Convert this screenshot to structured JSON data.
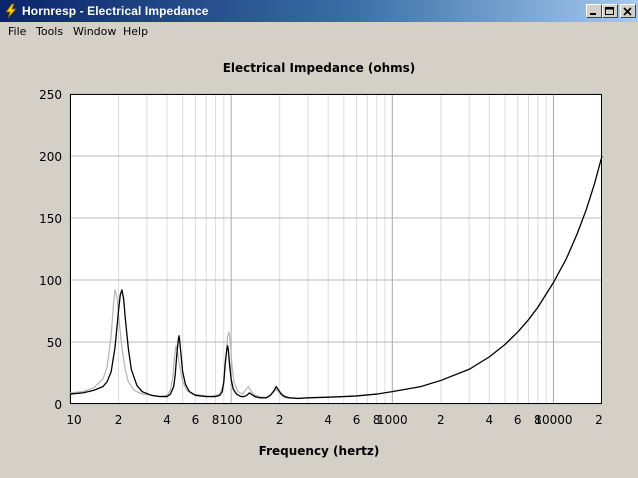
{
  "window": {
    "title": "Hornresp - Electrical Impedance",
    "icon": "hornresp-app-icon",
    "controls": [
      "minimize-icon",
      "maximize-icon",
      "close-icon"
    ]
  },
  "menu": {
    "items": [
      "File",
      "Tools",
      "Window",
      "Help"
    ]
  },
  "colors": {
    "titlebar_start": "#0a246a",
    "titlebar_end": "#a6caf0",
    "window_bg": "#d4d0c8",
    "plot_bg": "#ffffff",
    "grid": "#c0c0c0",
    "primary_curve": "#000000",
    "reference_curve": "#b4b4b4"
  },
  "chart_data": {
    "type": "line",
    "title": "Electrical Impedance (ohms)",
    "xlabel": "Frequency (hertz)",
    "ylabel": "",
    "x_scale": "log",
    "xlim": [
      10,
      20000
    ],
    "ylim": [
      0,
      250
    ],
    "y_ticks": [
      0,
      50,
      100,
      150,
      200,
      250
    ],
    "x_tick_labels": [
      {
        "value": 10,
        "label": "10"
      },
      {
        "value": 20,
        "label": "2"
      },
      {
        "value": 40,
        "label": "4"
      },
      {
        "value": 60,
        "label": "6"
      },
      {
        "value": 80,
        "label": "8"
      },
      {
        "value": 100,
        "label": "100"
      },
      {
        "value": 200,
        "label": "2"
      },
      {
        "value": 400,
        "label": "4"
      },
      {
        "value": 600,
        "label": "6"
      },
      {
        "value": 800,
        "label": "8"
      },
      {
        "value": 1000,
        "label": "1000"
      },
      {
        "value": 2000,
        "label": "2"
      },
      {
        "value": 4000,
        "label": "4"
      },
      {
        "value": 6000,
        "label": "6"
      },
      {
        "value": 8000,
        "label": "8"
      },
      {
        "value": 10000,
        "label": "10000"
      },
      {
        "value": 20000,
        "label": "2"
      }
    ],
    "grid": true,
    "series": [
      {
        "color": "#000000",
        "points": [
          [
            10,
            8
          ],
          [
            12,
            9
          ],
          [
            14,
            11
          ],
          [
            16,
            14
          ],
          [
            17,
            18
          ],
          [
            18,
            26
          ],
          [
            19,
            45
          ],
          [
            20,
            75
          ],
          [
            20.5,
            88
          ],
          [
            21,
            92
          ],
          [
            21.5,
            85
          ],
          [
            22,
            70
          ],
          [
            23,
            45
          ],
          [
            24,
            28
          ],
          [
            26,
            15
          ],
          [
            28,
            10
          ],
          [
            32,
            7
          ],
          [
            36,
            6
          ],
          [
            40,
            6
          ],
          [
            42,
            8
          ],
          [
            44,
            14
          ],
          [
            45,
            24
          ],
          [
            46,
            40
          ],
          [
            47,
            52
          ],
          [
            47.5,
            55
          ],
          [
            48,
            50
          ],
          [
            49,
            38
          ],
          [
            50,
            26
          ],
          [
            52,
            16
          ],
          [
            55,
            10
          ],
          [
            60,
            7
          ],
          [
            70,
            6
          ],
          [
            80,
            6
          ],
          [
            85,
            7
          ],
          [
            88,
            10
          ],
          [
            90,
            18
          ],
          [
            92,
            34
          ],
          [
            94,
            44
          ],
          [
            95,
            47
          ],
          [
            96,
            44
          ],
          [
            98,
            30
          ],
          [
            100,
            20
          ],
          [
            103,
            12
          ],
          [
            108,
            8
          ],
          [
            115,
            6
          ],
          [
            120,
            6
          ],
          [
            125,
            7
          ],
          [
            130,
            9
          ],
          [
            133,
            8
          ],
          [
            140,
            6
          ],
          [
            150,
            5
          ],
          [
            165,
            5
          ],
          [
            175,
            7
          ],
          [
            185,
            11
          ],
          [
            190,
            14
          ],
          [
            195,
            12
          ],
          [
            205,
            8
          ],
          [
            215,
            6
          ],
          [
            230,
            5
          ],
          [
            260,
            4.5
          ],
          [
            300,
            5
          ],
          [
            400,
            5.5
          ],
          [
            500,
            6
          ],
          [
            600,
            6.5
          ],
          [
            800,
            8
          ],
          [
            1000,
            10
          ],
          [
            1500,
            14
          ],
          [
            2000,
            19
          ],
          [
            3000,
            28
          ],
          [
            4000,
            38
          ],
          [
            5000,
            48
          ],
          [
            6000,
            58
          ],
          [
            7000,
            68
          ],
          [
            8000,
            78
          ],
          [
            10000,
            98
          ],
          [
            12000,
            117
          ],
          [
            14000,
            137
          ],
          [
            16000,
            157
          ],
          [
            18000,
            178
          ],
          [
            20000,
            200
          ]
        ]
      },
      {
        "color": "#b4b4b4",
        "points": [
          [
            10,
            9
          ],
          [
            12,
            10
          ],
          [
            14,
            13
          ],
          [
            16,
            20
          ],
          [
            17,
            30
          ],
          [
            18,
            55
          ],
          [
            18.6,
            80
          ],
          [
            19,
            92
          ],
          [
            19.6,
            86
          ],
          [
            20,
            72
          ],
          [
            21,
            45
          ],
          [
            22,
            28
          ],
          [
            23,
            18
          ],
          [
            25,
            11
          ],
          [
            28,
            8
          ],
          [
            32,
            7
          ],
          [
            36,
            6
          ],
          [
            40,
            7
          ],
          [
            42,
            11
          ],
          [
            43.5,
            22
          ],
          [
            44.5,
            38
          ],
          [
            45.5,
            47
          ],
          [
            46.5,
            42
          ],
          [
            48,
            30
          ],
          [
            50,
            18
          ],
          [
            53,
            11
          ],
          [
            58,
            8
          ],
          [
            65,
            7
          ],
          [
            75,
            6
          ],
          [
            85,
            8
          ],
          [
            90,
            16
          ],
          [
            93,
            38
          ],
          [
            95,
            55
          ],
          [
            97,
            58
          ],
          [
            99,
            48
          ],
          [
            101,
            32
          ],
          [
            104,
            18
          ],
          [
            110,
            10
          ],
          [
            118,
            8
          ],
          [
            124,
            12
          ],
          [
            128,
            14
          ],
          [
            132,
            11
          ],
          [
            140,
            7
          ],
          [
            150,
            6
          ],
          [
            165,
            5
          ],
          [
            175,
            7
          ],
          [
            185,
            10
          ],
          [
            190,
            12
          ],
          [
            195,
            10
          ],
          [
            205,
            7
          ],
          [
            215,
            5
          ],
          [
            230,
            4.5
          ]
        ]
      }
    ]
  }
}
